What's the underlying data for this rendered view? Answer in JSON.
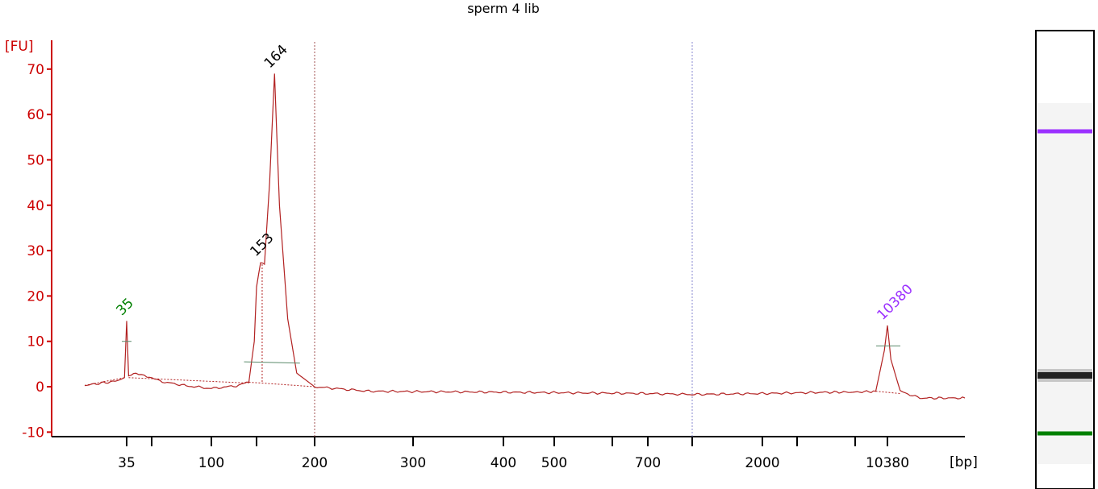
{
  "chart_data": {
    "type": "line",
    "title": "sperm 4 lib",
    "y_unit": "[FU]",
    "x_unit": "[bp]",
    "ylim": [
      -11,
      76
    ],
    "y_ticks": [
      -10,
      0,
      10,
      20,
      30,
      40,
      50,
      60,
      70
    ],
    "x_tick_labels": [
      "35",
      "100",
      "200",
      "300",
      "400",
      "500",
      "700",
      "2000",
      "10380"
    ],
    "x_scale": "sizing-ladder (nonlinear)",
    "grid": false,
    "colors": {
      "trace": "#b22222",
      "axis": "#cc0000",
      "lower_marker": "#008000",
      "upper_marker": "#9b30ff",
      "peak_label": "#000000"
    },
    "peaks": [
      {
        "label": "35",
        "size_bp": 35,
        "height_fu": 14.5,
        "role": "lower marker"
      },
      {
        "label": "153",
        "size_bp": 153,
        "height_fu": 27.5,
        "role": "sample"
      },
      {
        "label": "164",
        "size_bp": 164,
        "height_fu": 69,
        "role": "sample"
      },
      {
        "label": "10380",
        "size_bp": 10380,
        "height_fu": 13.5,
        "role": "upper marker"
      }
    ],
    "trace_anchors": [
      {
        "size_bp": 20,
        "fu": 0.3
      },
      {
        "size_bp": 30,
        "fu": 1.2
      },
      {
        "size_bp": 34,
        "fu": 2
      },
      {
        "size_bp": 35,
        "fu": 14.5
      },
      {
        "size_bp": 36,
        "fu": 2.5
      },
      {
        "size_bp": 40,
        "fu": 2.8
      },
      {
        "size_bp": 45,
        "fu": 2.6
      },
      {
        "size_bp": 55,
        "fu": 1.2
      },
      {
        "size_bp": 75,
        "fu": 0.2
      },
      {
        "size_bp": 100,
        "fu": -0.4
      },
      {
        "size_bp": 125,
        "fu": 0.2
      },
      {
        "size_bp": 140,
        "fu": 1
      },
      {
        "size_bp": 147,
        "fu": 10
      },
      {
        "size_bp": 150,
        "fu": 22
      },
      {
        "size_bp": 153,
        "fu": 27.5
      },
      {
        "size_bp": 156,
        "fu": 27
      },
      {
        "size_bp": 160,
        "fu": 45
      },
      {
        "size_bp": 164,
        "fu": 69
      },
      {
        "size_bp": 168,
        "fu": 40
      },
      {
        "size_bp": 175,
        "fu": 15
      },
      {
        "size_bp": 183,
        "fu": 3
      },
      {
        "size_bp": 200,
        "fu": 0
      },
      {
        "size_bp": 250,
        "fu": -1
      },
      {
        "size_bp": 400,
        "fu": -1.2
      },
      {
        "size_bp": 700,
        "fu": -1.5
      },
      {
        "size_bp": 1000,
        "fu": -1.7
      },
      {
        "size_bp": 2000,
        "fu": -1.5
      },
      {
        "size_bp": 5000,
        "fu": -1.2
      },
      {
        "size_bp": 7000,
        "fu": -1.2
      },
      {
        "size_bp": 9000,
        "fu": -1
      },
      {
        "size_bp": 10000,
        "fu": 8
      },
      {
        "size_bp": 10380,
        "fu": 13.5
      },
      {
        "size_bp": 10800,
        "fu": 6
      },
      {
        "size_bp": 12000,
        "fu": -1
      },
      {
        "size_bp": 15000,
        "fu": -2.5
      },
      {
        "size_bp": 25000,
        "fu": -2.5
      }
    ],
    "gel": {
      "bands": [
        {
          "name": "upper marker band",
          "color": "#9b30ff"
        },
        {
          "name": "sample band",
          "color": "#222222"
        },
        {
          "name": "lower marker band",
          "color": "#008000"
        }
      ]
    }
  }
}
